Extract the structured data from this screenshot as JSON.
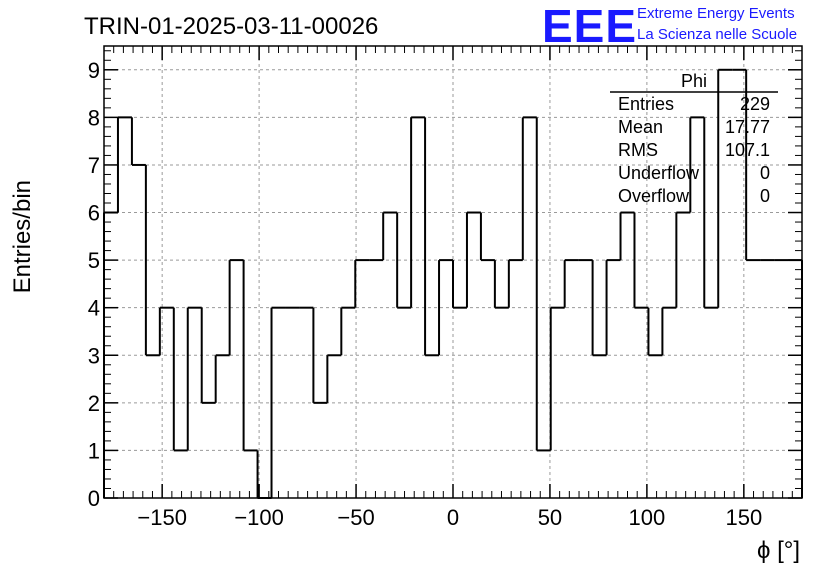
{
  "header": {
    "title": "TRIN-01-2025-03-11-00026",
    "logo_text": "EEE",
    "logo_line1": "Extreme Energy Events",
    "logo_line2": "La Scienza nelle Scuole",
    "logo_color": "#1a1aff"
  },
  "stats": {
    "name": "Phi",
    "rows": [
      {
        "label": "Entries",
        "value": "229"
      },
      {
        "label": "Mean",
        "value": "17.77"
      },
      {
        "label": "RMS",
        "value": "107.1"
      },
      {
        "label": "Underflow",
        "value": "0"
      },
      {
        "label": "Overflow",
        "value": "0"
      }
    ]
  },
  "chart_data": {
    "type": "histogram",
    "xlabel": "ϕ [°]",
    "ylabel": "Entries/bin",
    "xlim": [
      -180,
      180
    ],
    "ylim": [
      0,
      9.5
    ],
    "bin_width": 7.2,
    "bin_edges_start": -180,
    "counts": [
      6,
      8,
      7,
      3,
      4,
      1,
      4,
      2,
      3,
      5,
      1,
      0,
      4,
      4,
      4,
      2,
      3,
      4,
      5,
      5,
      6,
      4,
      8,
      3,
      5,
      4,
      6,
      5,
      4,
      5,
      8,
      1,
      4,
      5,
      5,
      3,
      5,
      6,
      4,
      3,
      4,
      6,
      8,
      4,
      9,
      9,
      5,
      5,
      5,
      5
    ],
    "xticks": [
      -150,
      -100,
      -50,
      0,
      50,
      100,
      150
    ],
    "xtick_labels": [
      "−150",
      "−100",
      "−50",
      "0",
      "50",
      "100",
      "150"
    ],
    "yticks": [
      0,
      1,
      2,
      3,
      4,
      5,
      6,
      7,
      8,
      9
    ],
    "grid": true,
    "line_color": "#000000"
  }
}
